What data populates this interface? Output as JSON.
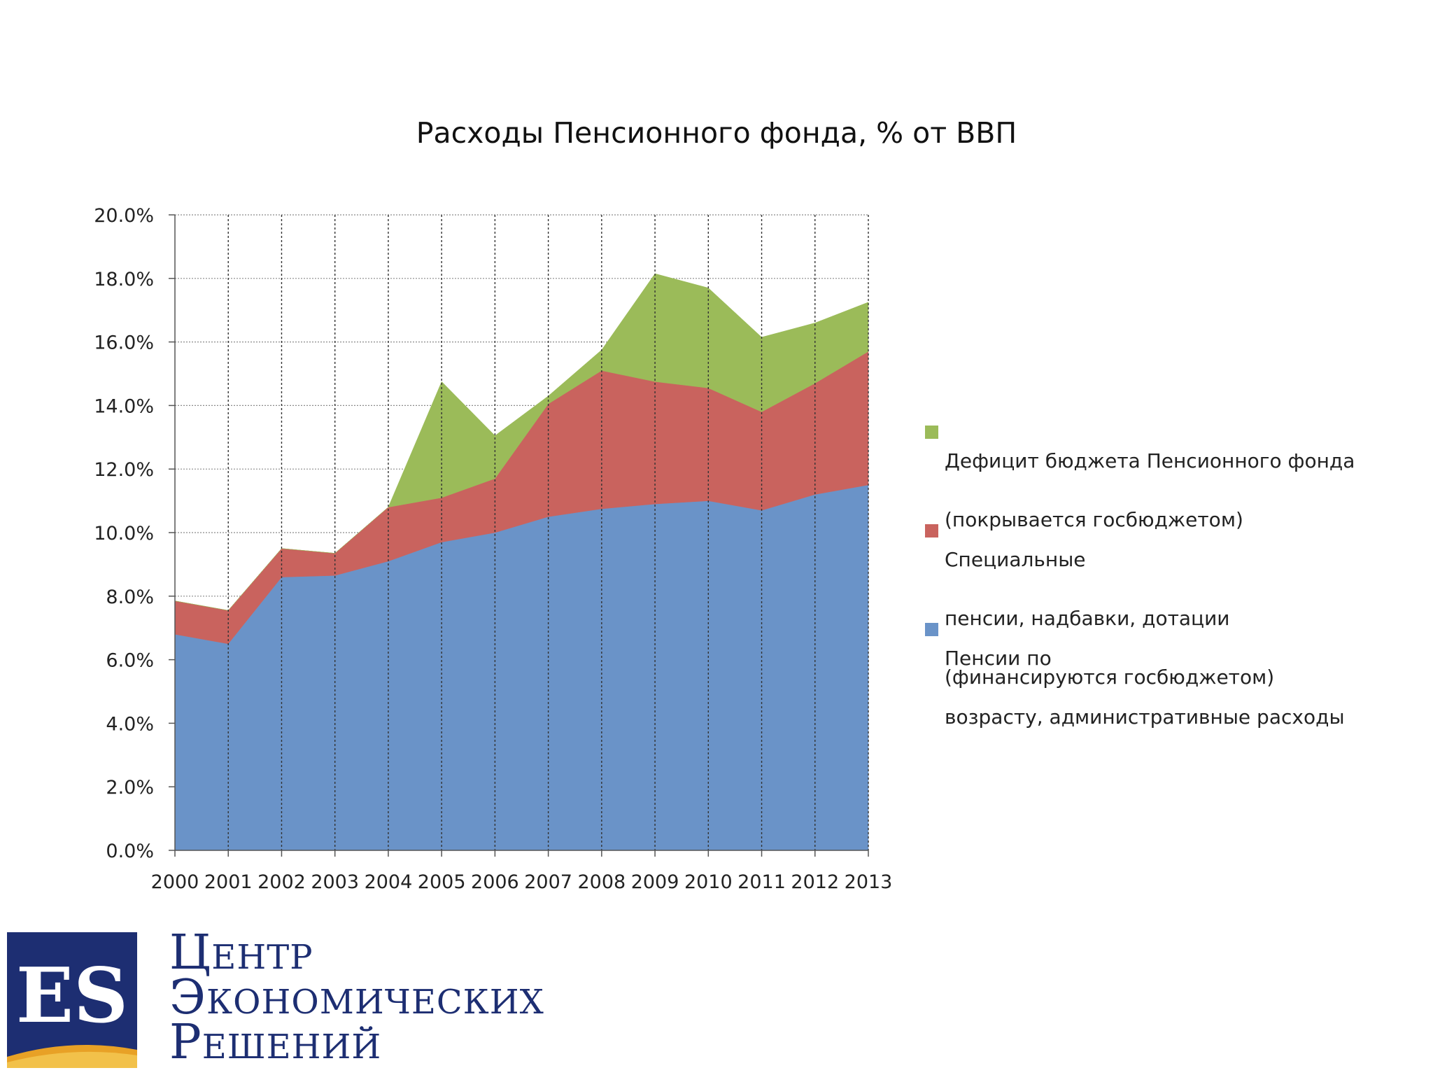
{
  "chart_data": {
    "type": "area",
    "stacked": true,
    "title": "Расходы Пенсионного фонда, % от ВВП",
    "x": [
      "2000",
      "2001",
      "2002",
      "2003",
      "2004",
      "2005",
      "2006",
      "2007",
      "2008",
      "2009",
      "2010",
      "2011",
      "2012",
      "2013"
    ],
    "series": [
      {
        "name": "Пенсии по возрасту, административные расходы",
        "color": "#6a93c8",
        "values": [
          6.8,
          6.5,
          8.6,
          8.65,
          9.1,
          9.7,
          10.0,
          10.5,
          10.75,
          10.9,
          11.0,
          10.7,
          11.2,
          11.5
        ]
      },
      {
        "name": "Специальные пенсии, надбавки, дотации (финансируются госбюджетом)",
        "color": "#c9635e",
        "values": [
          1.05,
          1.05,
          0.9,
          0.7,
          1.7,
          1.4,
          1.7,
          3.55,
          4.35,
          3.85,
          3.55,
          3.1,
          3.5,
          4.2
        ]
      },
      {
        "name": "Дефицит бюджета Пенсионного фонда (покрывается госбюджетом)",
        "color": "#9bbb59",
        "values": [
          0.0,
          0.0,
          0.0,
          0.0,
          0.0,
          3.65,
          1.35,
          0.25,
          0.65,
          3.4,
          3.15,
          2.35,
          1.9,
          1.55
        ]
      }
    ],
    "ylim": [
      0,
      20
    ],
    "yticks": [
      "0.0%",
      "2.0%",
      "4.0%",
      "6.0%",
      "8.0%",
      "10.0%",
      "12.0%",
      "14.0%",
      "16.0%",
      "18.0%",
      "20.0%"
    ],
    "xlabel": "",
    "ylabel": "",
    "grid": "horizontal dotted gridlines, vertical dotted lines at each year",
    "legend_position": "right"
  },
  "legend": {
    "deficit_line1": "Дефицит бюджета Пенсионного фонда",
    "deficit_line2": "(покрывается госбюджетом)",
    "special_line1": "Специальные",
    "special_line2": "пенсии, надбавки, дотации",
    "special_line3": "(финансируются госбюджетом)",
    "pensions_line1": "Пенсии по",
    "pensions_line2": "возрасту, административные расходы"
  },
  "logo": {
    "mark_text": "ES",
    "line1": "Центр",
    "line2": "экономических",
    "line3": "решений",
    "mark_color": "#1d2e72",
    "stripe_color": "#e8a126"
  }
}
